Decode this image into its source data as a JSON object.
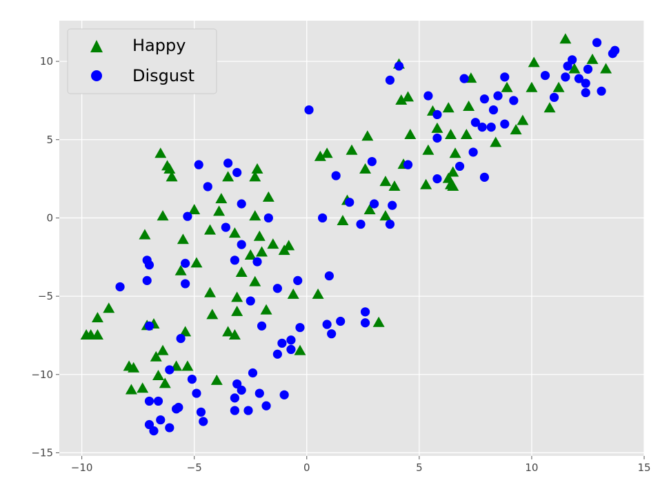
{
  "chart_data": {
    "type": "scatter",
    "title": "",
    "xlabel": "",
    "ylabel": "",
    "xlim": [
      -11,
      15
    ],
    "ylim": [
      -15.2,
      12.6
    ],
    "xticks": [
      -10,
      -5,
      0,
      5,
      10,
      15
    ],
    "yticks": [
      -15,
      -10,
      -5,
      0,
      5,
      10
    ],
    "xtick_labels": [
      "−10",
      "−5",
      "0",
      "5",
      "10",
      "15"
    ],
    "ytick_labels": [
      "−15",
      "−10",
      "−5",
      "0",
      "5",
      "10"
    ],
    "grid": true,
    "legend_position": "top-left",
    "series": [
      {
        "name": "Happy",
        "marker": "triangle",
        "color": "#008000",
        "points": [
          [
            -9.8,
            -7.5
          ],
          [
            -9.6,
            -7.5
          ],
          [
            -9.3,
            -7.5
          ],
          [
            -9.3,
            -6.4
          ],
          [
            -8.8,
            -5.8
          ],
          [
            -7.9,
            -9.5
          ],
          [
            -7.7,
            -9.6
          ],
          [
            -7.8,
            -11.0
          ],
          [
            -7.3,
            -10.9
          ],
          [
            -7.1,
            -6.9
          ],
          [
            -6.8,
            -6.8
          ],
          [
            -6.7,
            -8.9
          ],
          [
            -6.6,
            -10.1
          ],
          [
            -6.4,
            -8.5
          ],
          [
            -6.3,
            -10.6
          ],
          [
            -7.2,
            -1.1
          ],
          [
            -6.5,
            4.1
          ],
          [
            -6.2,
            3.3
          ],
          [
            -6.1,
            3.1
          ],
          [
            -6.0,
            2.6
          ],
          [
            -6.4,
            0.1
          ],
          [
            -5.8,
            -9.5
          ],
          [
            -5.6,
            -3.4
          ],
          [
            -5.5,
            -1.4
          ],
          [
            -5.3,
            -9.5
          ],
          [
            -5.4,
            -7.3
          ],
          [
            -5.0,
            0.5
          ],
          [
            -4.9,
            -2.9
          ],
          [
            -4.3,
            -0.8
          ],
          [
            -4.3,
            -4.8
          ],
          [
            -4.2,
            -6.2
          ],
          [
            -4.0,
            -10.4
          ],
          [
            -3.9,
            0.4
          ],
          [
            -3.8,
            1.2
          ],
          [
            -3.5,
            2.6
          ],
          [
            -3.5,
            -7.3
          ],
          [
            -3.2,
            -7.5
          ],
          [
            -3.2,
            -1.0
          ],
          [
            -3.1,
            -5.1
          ],
          [
            -3.1,
            -6.0
          ],
          [
            -2.9,
            -3.5
          ],
          [
            -2.5,
            -2.4
          ],
          [
            -2.3,
            -4.1
          ],
          [
            -2.3,
            2.6
          ],
          [
            -2.2,
            3.1
          ],
          [
            -2.1,
            -1.2
          ],
          [
            -2.0,
            -2.2
          ],
          [
            -1.8,
            -5.9
          ],
          [
            -1.7,
            1.3
          ],
          [
            -1.5,
            -1.7
          ],
          [
            -1.0,
            -2.1
          ],
          [
            -0.8,
            -1.8
          ],
          [
            -0.6,
            -4.9
          ],
          [
            -0.3,
            -8.5
          ],
          [
            -2.3,
            0.1
          ],
          [
            0.5,
            -4.9
          ],
          [
            0.6,
            3.9
          ],
          [
            0.9,
            4.1
          ],
          [
            1.6,
            -0.2
          ],
          [
            1.8,
            1.1
          ],
          [
            2.0,
            4.3
          ],
          [
            2.6,
            3.1
          ],
          [
            2.7,
            5.2
          ],
          [
            2.8,
            0.5
          ],
          [
            3.2,
            -6.7
          ],
          [
            3.5,
            0.1
          ],
          [
            3.5,
            2.3
          ],
          [
            3.9,
            2.0
          ],
          [
            4.1,
            9.8
          ],
          [
            4.2,
            7.5
          ],
          [
            4.3,
            3.4
          ],
          [
            4.5,
            7.7
          ],
          [
            4.6,
            5.3
          ],
          [
            5.3,
            2.1
          ],
          [
            5.4,
            4.3
          ],
          [
            5.6,
            6.8
          ],
          [
            5.8,
            5.7
          ],
          [
            6.3,
            7.0
          ],
          [
            6.4,
            5.3
          ],
          [
            6.3,
            2.5
          ],
          [
            6.4,
            2.1
          ],
          [
            6.5,
            2.9
          ],
          [
            6.5,
            2.0
          ],
          [
            6.6,
            4.1
          ],
          [
            7.1,
            5.3
          ],
          [
            7.2,
            7.1
          ],
          [
            7.3,
            8.9
          ],
          [
            8.4,
            4.8
          ],
          [
            8.9,
            8.3
          ],
          [
            9.3,
            5.6
          ],
          [
            9.6,
            6.2
          ],
          [
            10.0,
            8.3
          ],
          [
            10.1,
            9.9
          ],
          [
            10.8,
            7.0
          ],
          [
            11.2,
            8.3
          ],
          [
            11.5,
            11.4
          ],
          [
            11.9,
            9.5
          ],
          [
            12.7,
            10.1
          ],
          [
            13.3,
            9.5
          ]
        ]
      },
      {
        "name": "Disgust",
        "marker": "circle",
        "color": "#0000ff",
        "points": [
          [
            -8.3,
            -4.4
          ],
          [
            -7.1,
            -2.7
          ],
          [
            -7.0,
            -3.0
          ],
          [
            -7.1,
            -4.0
          ],
          [
            -7.0,
            -6.9
          ],
          [
            -7.0,
            -11.7
          ],
          [
            -7.0,
            -13.2
          ],
          [
            -6.8,
            -13.6
          ],
          [
            -6.6,
            -11.7
          ],
          [
            -6.5,
            -12.9
          ],
          [
            -6.1,
            -9.7
          ],
          [
            -6.1,
            -13.4
          ],
          [
            -5.7,
            -12.1
          ],
          [
            -5.8,
            -12.2
          ],
          [
            -5.6,
            -7.7
          ],
          [
            -5.4,
            -2.9
          ],
          [
            -5.4,
            -4.2
          ],
          [
            -5.3,
            0.1
          ],
          [
            -5.1,
            -10.3
          ],
          [
            -4.9,
            -11.2
          ],
          [
            -4.7,
            -12.4
          ],
          [
            -4.8,
            3.4
          ],
          [
            -4.4,
            2.0
          ],
          [
            -4.6,
            -13.0
          ],
          [
            -3.5,
            3.5
          ],
          [
            -3.6,
            -0.6
          ],
          [
            -3.2,
            -2.7
          ],
          [
            -3.1,
            -10.6
          ],
          [
            -2.9,
            -11.0
          ],
          [
            -3.2,
            -11.5
          ],
          [
            -3.2,
            -12.3
          ],
          [
            -2.9,
            0.9
          ],
          [
            -3.1,
            2.9
          ],
          [
            -2.9,
            -1.7
          ],
          [
            -2.6,
            -12.3
          ],
          [
            -2.5,
            -5.3
          ],
          [
            -2.4,
            -9.9
          ],
          [
            -2.2,
            -2.8
          ],
          [
            -2.1,
            -11.2
          ],
          [
            -2.0,
            -6.9
          ],
          [
            -1.8,
            -12.0
          ],
          [
            -1.7,
            0.0
          ],
          [
            -1.3,
            -4.5
          ],
          [
            -1.3,
            -8.7
          ],
          [
            -1.1,
            -8.0
          ],
          [
            -1.0,
            -11.3
          ],
          [
            -0.7,
            -7.8
          ],
          [
            -0.7,
            -8.4
          ],
          [
            -0.4,
            -4.0
          ],
          [
            -0.3,
            -7.0
          ],
          [
            0.1,
            6.9
          ],
          [
            0.7,
            0.0
          ],
          [
            0.9,
            -6.8
          ],
          [
            1.0,
            -3.7
          ],
          [
            1.1,
            -7.4
          ],
          [
            1.3,
            2.7
          ],
          [
            1.5,
            -6.6
          ],
          [
            1.9,
            1.0
          ],
          [
            2.4,
            -0.4
          ],
          [
            2.6,
            -6.0
          ],
          [
            2.6,
            -6.7
          ],
          [
            2.9,
            3.6
          ],
          [
            3.0,
            0.9
          ],
          [
            3.7,
            8.8
          ],
          [
            3.8,
            0.8
          ],
          [
            3.7,
            -0.4
          ],
          [
            4.1,
            9.7
          ],
          [
            4.5,
            3.4
          ],
          [
            5.4,
            7.8
          ],
          [
            5.8,
            6.6
          ],
          [
            5.8,
            5.1
          ],
          [
            5.8,
            2.5
          ],
          [
            7.0,
            8.9
          ],
          [
            6.8,
            3.3
          ],
          [
            7.4,
            4.2
          ],
          [
            7.5,
            6.1
          ],
          [
            7.8,
            5.8
          ],
          [
            7.9,
            7.6
          ],
          [
            7.9,
            2.6
          ],
          [
            8.2,
            5.8
          ],
          [
            8.3,
            6.9
          ],
          [
            8.5,
            7.8
          ],
          [
            8.8,
            9.0
          ],
          [
            8.8,
            6.0
          ],
          [
            9.2,
            7.5
          ],
          [
            10.6,
            9.1
          ],
          [
            11.0,
            7.7
          ],
          [
            11.5,
            9.0
          ],
          [
            11.6,
            9.7
          ],
          [
            11.8,
            10.1
          ],
          [
            12.1,
            8.9
          ],
          [
            12.4,
            8.0
          ],
          [
            12.4,
            8.6
          ],
          [
            12.5,
            9.5
          ],
          [
            12.9,
            11.2
          ],
          [
            13.1,
            8.1
          ],
          [
            13.6,
            10.5
          ],
          [
            13.7,
            10.7
          ]
        ]
      }
    ]
  }
}
